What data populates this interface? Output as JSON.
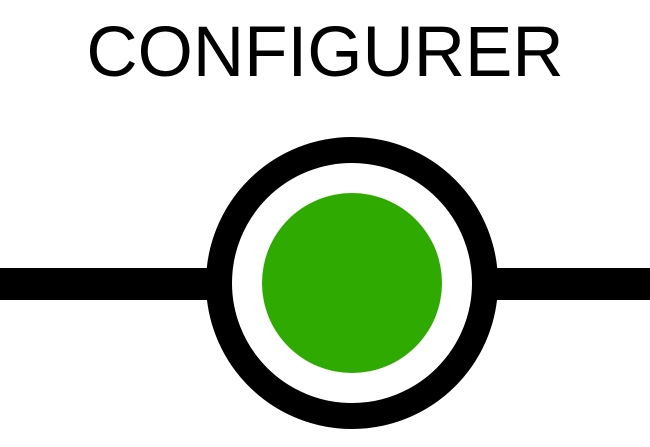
{
  "title": "CONFIGURER",
  "colors": {
    "stroke": "#000000",
    "background": "#ffffff",
    "status_indicator": "#2eaa00"
  },
  "icons": {
    "status": "status-dot-icon",
    "connector": "connector-line"
  }
}
